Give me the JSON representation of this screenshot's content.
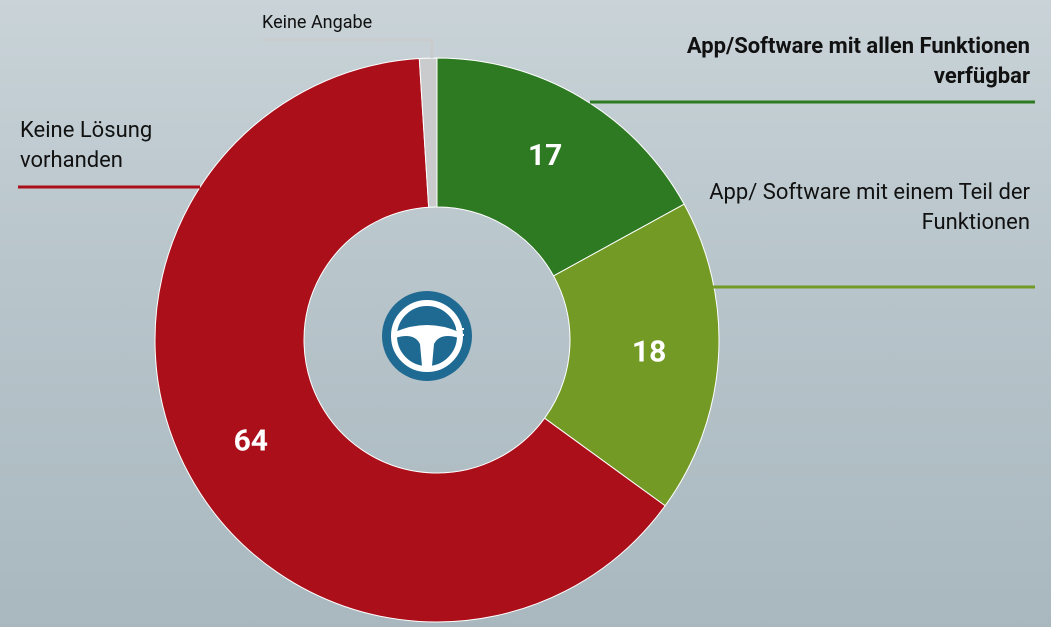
{
  "chart_data": {
    "type": "donut",
    "categories": [
      "App/Software mit allen Funktionen verfügbar",
      "App/ Software mit einem Teil der Funktionen",
      "Keine Lösung vorhanden",
      "Keine Angabe"
    ],
    "values": [
      17,
      18,
      64,
      1
    ],
    "colors": [
      "#2e7a22",
      "#739a25",
      "#ab0f1a",
      "#c9cbcc"
    ]
  }
}
